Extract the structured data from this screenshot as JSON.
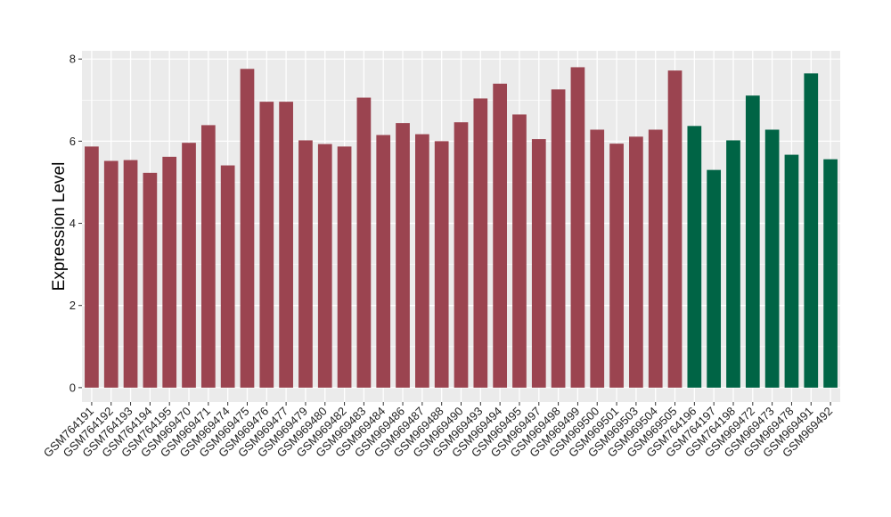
{
  "chart_data": {
    "type": "bar",
    "title": "",
    "xlabel": "",
    "ylabel": "Expression Level",
    "ylim": [
      -0.35,
      8.2
    ],
    "yticks": [
      0,
      2,
      4,
      6,
      8
    ],
    "grid": true,
    "legend": "none",
    "colors": {
      "group_a": "#9b4450",
      "group_b": "#006445",
      "panel": "#ebebeb",
      "grid": "#ffffff"
    },
    "categories": [
      "GSM764191",
      "GSM764192",
      "GSM764193",
      "GSM764194",
      "GSM764195",
      "GSM969470",
      "GSM969471",
      "GSM969474",
      "GSM969475",
      "GSM969476",
      "GSM969477",
      "GSM969479",
      "GSM969480",
      "GSM969482",
      "GSM969483",
      "GSM969484",
      "GSM969486",
      "GSM969487",
      "GSM969488",
      "GSM969490",
      "GSM969493",
      "GSM969494",
      "GSM969495",
      "GSM969497",
      "GSM969498",
      "GSM969499",
      "GSM969500",
      "GSM969501",
      "GSM969503",
      "GSM969504",
      "GSM969505",
      "GSM764196",
      "GSM764197",
      "GSM764198",
      "GSM969472",
      "GSM969473",
      "GSM969478",
      "GSM969491",
      "GSM969492"
    ],
    "values": [
      5.87,
      5.52,
      5.54,
      5.23,
      5.62,
      5.96,
      6.39,
      5.41,
      7.76,
      6.96,
      6.96,
      6.02,
      5.93,
      5.87,
      7.06,
      6.15,
      6.44,
      6.17,
      6.0,
      6.46,
      7.04,
      7.4,
      6.65,
      6.05,
      7.26,
      7.8,
      6.28,
      5.94,
      6.11,
      6.28,
      7.72,
      6.37,
      5.3,
      6.02,
      7.11,
      6.28,
      5.67,
      7.65,
      5.56
    ],
    "groups": [
      "a",
      "a",
      "a",
      "a",
      "a",
      "a",
      "a",
      "a",
      "a",
      "a",
      "a",
      "a",
      "a",
      "a",
      "a",
      "a",
      "a",
      "a",
      "a",
      "a",
      "a",
      "a",
      "a",
      "a",
      "a",
      "a",
      "a",
      "a",
      "a",
      "a",
      "a",
      "b",
      "b",
      "b",
      "b",
      "b",
      "b",
      "b",
      "b"
    ]
  }
}
